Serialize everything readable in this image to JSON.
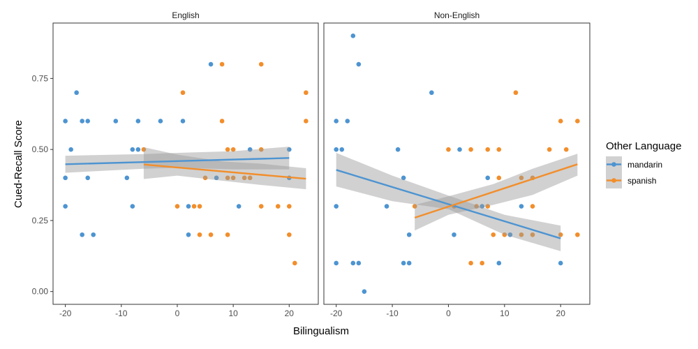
{
  "chart_data": {
    "type": "scatter",
    "xlabel": "Bilingualism",
    "ylabel": "Cued-Recall Score",
    "xlim": [
      -22.2,
      25.2
    ],
    "ylim": [
      -0.045,
      0.945
    ],
    "x_ticks": [
      -20,
      -10,
      0,
      10,
      20
    ],
    "x_tick_labels": [
      "-20",
      "-10",
      "0",
      "10",
      "20"
    ],
    "y_ticks": [
      0,
      0.25,
      0.5,
      0.75
    ],
    "y_tick_labels": [
      "0.00",
      "0.25",
      "0.50",
      "0.75"
    ],
    "grid": false,
    "legend": {
      "title": "Other Language",
      "position": "right",
      "entries": [
        {
          "name": "mandarin",
          "color": "#4d94d1"
        },
        {
          "name": "spanish",
          "color": "#f28e2b"
        }
      ]
    },
    "panels": [
      {
        "label": "English",
        "series": [
          {
            "name": "mandarin",
            "color": "#4d94d1",
            "points": [
              [
                -20,
                0.6
              ],
              [
                -20,
                0.4
              ],
              [
                -20,
                0.3
              ],
              [
                -19,
                0.5
              ],
              [
                -18,
                0.7
              ],
              [
                -17,
                0.6
              ],
              [
                -17,
                0.2
              ],
              [
                -16,
                0.6
              ],
              [
                -16,
                0.4
              ],
              [
                -15,
                0.2
              ],
              [
                -11,
                0.6
              ],
              [
                -9,
                0.4
              ],
              [
                -8,
                0.5
              ],
              [
                -8,
                0.3
              ],
              [
                -7,
                0.6
              ],
              [
                -7,
                0.5
              ],
              [
                -3,
                0.6
              ],
              [
                1,
                0.6
              ],
              [
                2,
                0.3
              ],
              [
                2,
                0.2
              ],
              [
                6,
                0.8
              ],
              [
                7,
                0.4
              ],
              [
                11,
                0.3
              ],
              [
                13,
                0.5
              ],
              [
                20,
                0.5
              ],
              [
                20,
                0.4
              ]
            ],
            "fit": {
              "x": [
                -20,
                20
              ],
              "y": [
                0.448,
                0.47
              ]
            },
            "ci_band": {
              "x": [
                -20,
                -6,
                0,
                10,
                20
              ],
              "upper": [
                0.478,
                0.484,
                0.488,
                0.494,
                0.51
              ],
              "lower": [
                0.418,
                0.432,
                0.436,
                0.43,
                0.43
              ]
            }
          },
          {
            "name": "spanish",
            "color": "#f28e2b",
            "points": [
              [
                -6,
                0.5
              ],
              [
                0,
                0.3
              ],
              [
                1,
                0.7
              ],
              [
                3,
                0.3
              ],
              [
                4,
                0.3
              ],
              [
                4,
                0.2
              ],
              [
                5,
                0.4
              ],
              [
                6,
                0.2
              ],
              [
                8,
                0.8
              ],
              [
                8,
                0.6
              ],
              [
                9,
                0.5
              ],
              [
                9,
                0.4
              ],
              [
                9,
                0.2
              ],
              [
                10,
                0.5
              ],
              [
                10,
                0.4
              ],
              [
                12,
                0.4
              ],
              [
                13,
                0.4
              ],
              [
                15,
                0.8
              ],
              [
                15,
                0.5
              ],
              [
                15,
                0.3
              ],
              [
                18,
                0.3
              ],
              [
                20,
                0.3
              ],
              [
                20,
                0.2
              ],
              [
                21,
                0.1
              ],
              [
                23,
                0.7
              ],
              [
                23,
                0.6
              ]
            ],
            "fit": {
              "x": [
                -6,
                23
              ],
              "y": [
                0.447,
                0.397
              ]
            },
            "ci_band": {
              "x": [
                -6,
                0,
                8,
                15,
                23
              ],
              "upper": [
                0.508,
                0.482,
                0.458,
                0.45,
                0.434
              ],
              "lower": [
                0.396,
                0.408,
                0.39,
                0.375,
                0.36
              ]
            }
          }
        ]
      },
      {
        "label": "Non-English",
        "series": [
          {
            "name": "mandarin",
            "color": "#4d94d1",
            "points": [
              [
                -20,
                0.6
              ],
              [
                -20,
                0.5
              ],
              [
                -20,
                0.3
              ],
              [
                -20,
                0.1
              ],
              [
                -19,
                0.5
              ],
              [
                -18,
                0.6
              ],
              [
                -17,
                0.9
              ],
              [
                -17,
                0.1
              ],
              [
                -16,
                0.8
              ],
              [
                -16,
                0.1
              ],
              [
                -15,
                0.0
              ],
              [
                -11,
                0.3
              ],
              [
                -9,
                0.5
              ],
              [
                -8,
                0.4
              ],
              [
                -8,
                0.1
              ],
              [
                -7,
                0.2
              ],
              [
                -7,
                0.1
              ],
              [
                -3,
                0.7
              ],
              [
                1,
                0.2
              ],
              [
                2,
                0.5
              ],
              [
                6,
                0.3
              ],
              [
                7,
                0.4
              ],
              [
                9,
                0.1
              ],
              [
                11,
                0.2
              ],
              [
                13,
                0.3
              ],
              [
                20,
                0.1
              ]
            ],
            "fit": {
              "x": [
                -20,
                20
              ],
              "y": [
                0.428,
                0.187
              ]
            },
            "ci_band": {
              "x": [
                -20,
                -10,
                0,
                10,
                20
              ],
              "upper": [
                0.488,
                0.408,
                0.338,
                0.27,
                0.232
              ],
              "lower": [
                0.37,
                0.318,
                0.29,
                0.2,
                0.142
              ]
            }
          },
          {
            "name": "spanish",
            "color": "#f28e2b",
            "points": [
              [
                -6,
                0.3
              ],
              [
                0,
                0.5
              ],
              [
                1,
                0.3
              ],
              [
                4,
                0.5
              ],
              [
                4,
                0.1
              ],
              [
                5,
                0.3
              ],
              [
                6,
                0.1
              ],
              [
                7,
                0.5
              ],
              [
                7,
                0.3
              ],
              [
                8,
                0.2
              ],
              [
                9,
                0.5
              ],
              [
                9,
                0.4
              ],
              [
                10,
                0.2
              ],
              [
                12,
                0.7
              ],
              [
                13,
                0.4
              ],
              [
                13,
                0.2
              ],
              [
                15,
                0.4
              ],
              [
                15,
                0.3
              ],
              [
                15,
                0.2
              ],
              [
                18,
                0.5
              ],
              [
                20,
                0.6
              ],
              [
                20,
                0.2
              ],
              [
                21,
                0.5
              ],
              [
                23,
                0.6
              ],
              [
                23,
                0.2
              ]
            ],
            "fit": {
              "x": [
                -6,
                23
              ],
              "y": [
                0.26,
                0.448
              ]
            },
            "ci_band": {
              "x": [
                -6,
                0,
                8,
                15,
                23
              ],
              "upper": [
                0.305,
                0.335,
                0.378,
                0.432,
                0.485
              ],
              "lower": [
                0.215,
                0.27,
                0.305,
                0.34,
                0.408
              ]
            }
          }
        ]
      }
    ]
  }
}
